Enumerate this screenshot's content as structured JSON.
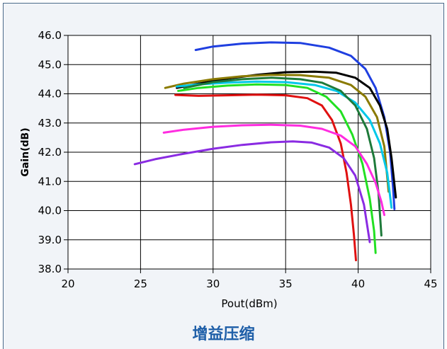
{
  "caption": "增益压缩",
  "chart_data": {
    "type": "line",
    "title": "",
    "xlabel": "Pout(dBm)",
    "ylabel": "Gain(dB)",
    "xlim": [
      20,
      45
    ],
    "ylim": [
      38.0,
      46.0
    ],
    "x_ticks": [
      "20",
      "25",
      "30",
      "35",
      "40",
      "45"
    ],
    "y_ticks": [
      "38.0",
      "39.0",
      "40.0",
      "41.0",
      "42.0",
      "43.0",
      "44.0",
      "45.0",
      "46.0"
    ],
    "grid": true,
    "legend": "none",
    "series": [
      {
        "color": "#1f3fe0",
        "x": [
          28.8,
          30,
          32,
          34,
          36,
          38,
          39.5,
          40.5,
          41.2,
          41.8,
          42.2,
          42.4,
          42.5
        ],
        "y": [
          45.5,
          45.62,
          45.72,
          45.76,
          45.74,
          45.58,
          45.3,
          44.85,
          44.2,
          43.2,
          42.0,
          40.8,
          40.05
        ]
      },
      {
        "color": "#000000",
        "x": [
          27.5,
          29,
          31,
          33,
          35,
          37,
          38.5,
          39.8,
          40.8,
          41.5,
          42,
          42.3,
          42.6
        ],
        "y": [
          44.2,
          44.35,
          44.52,
          44.65,
          44.74,
          44.76,
          44.72,
          44.55,
          44.2,
          43.6,
          42.8,
          41.8,
          40.45
        ]
      },
      {
        "color": "#8a7a00",
        "x": [
          26.7,
          28,
          30,
          32,
          34,
          36,
          38,
          39.5,
          40.5,
          41.3,
          41.8,
          42.1
        ],
        "y": [
          44.2,
          44.35,
          44.5,
          44.6,
          44.65,
          44.64,
          44.55,
          44.3,
          43.9,
          43.2,
          42.2,
          40.65
        ]
      },
      {
        "color": "#00c8e8",
        "x": [
          27.5,
          29,
          31,
          33,
          35,
          37,
          38.5,
          39.8,
          40.8,
          41.5,
          42.0,
          42.3
        ],
        "y": [
          44.25,
          44.32,
          44.38,
          44.42,
          44.4,
          44.3,
          44.1,
          43.7,
          43.1,
          42.3,
          41.3,
          40.1
        ]
      },
      {
        "color": "#1e7a3a",
        "x": [
          28,
          30,
          32,
          34,
          36,
          37.5,
          38.8,
          39.8,
          40.6,
          41.1,
          41.4,
          41.6
        ],
        "y": [
          44.2,
          44.4,
          44.5,
          44.55,
          44.5,
          44.38,
          44.1,
          43.6,
          42.8,
          41.8,
          40.6,
          39.15
        ]
      },
      {
        "color": "#22e022",
        "x": [
          27.6,
          29,
          31,
          33,
          35,
          36.5,
          37.8,
          38.8,
          39.6,
          40.3,
          40.8,
          41.1,
          41.2
        ],
        "y": [
          44.1,
          44.2,
          44.28,
          44.32,
          44.3,
          44.2,
          43.9,
          43.4,
          42.6,
          41.6,
          40.4,
          39.3,
          38.55
        ]
      },
      {
        "color": "#e01010",
        "x": [
          27.4,
          29,
          31,
          33,
          35,
          36.5,
          37.5,
          38.2,
          38.8,
          39.2,
          39.5,
          39.7,
          39.85
        ],
        "y": [
          43.96,
          43.93,
          43.95,
          43.97,
          43.95,
          43.85,
          43.6,
          43.1,
          42.3,
          41.3,
          40.2,
          39.2,
          38.3
        ]
      },
      {
        "color": "#ff2ce0",
        "x": [
          26.6,
          28,
          30,
          32,
          34,
          36,
          37.5,
          38.8,
          39.8,
          40.6,
          41.2,
          41.6,
          41.8
        ],
        "y": [
          42.67,
          42.77,
          42.87,
          42.92,
          42.94,
          42.91,
          42.8,
          42.57,
          42.2,
          41.6,
          40.95,
          40.3,
          39.85
        ]
      },
      {
        "color": "#8a2be2",
        "x": [
          24.6,
          26,
          28,
          30,
          32,
          34,
          35.5,
          36.8,
          38,
          39,
          39.8,
          40.4,
          40.8
        ],
        "y": [
          41.59,
          41.76,
          41.95,
          42.12,
          42.25,
          42.34,
          42.37,
          42.33,
          42.16,
          41.8,
          41.2,
          40.2,
          38.92
        ]
      }
    ]
  }
}
